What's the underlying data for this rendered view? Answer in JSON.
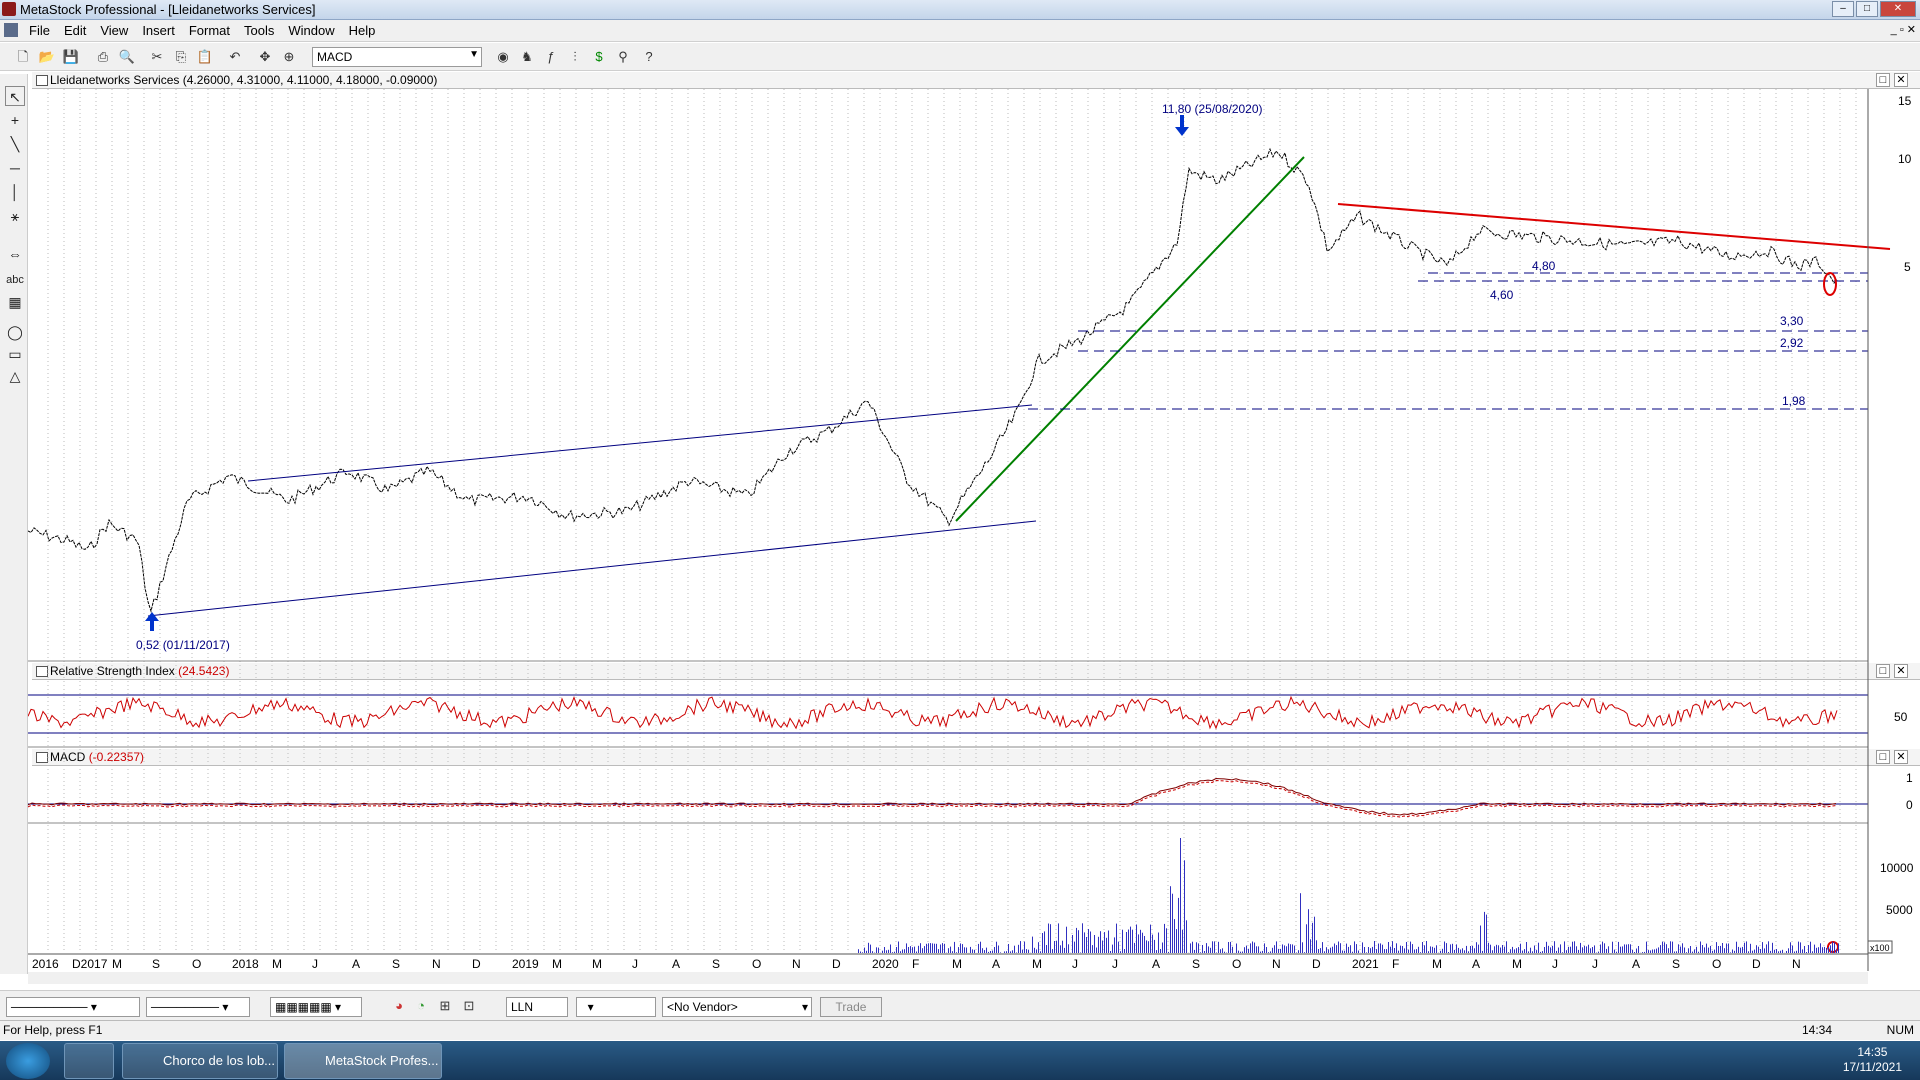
{
  "window": {
    "title": "MetaStock Professional - [Lleidanetworks Services]"
  },
  "menu": [
    "File",
    "Edit",
    "View",
    "Insert",
    "Format",
    "Tools",
    "Window",
    "Help"
  ],
  "toolbar": {
    "indicator": "MACD"
  },
  "price_pane": {
    "header": "Lleidanetworks Services (4.26000, 4.31000, 4.11000, 4.18000, -0.09000)",
    "annotations": {
      "high": "11,80 (25/08/2020)",
      "low": "0,52 (01/11/2017)",
      "l480": "4,80",
      "l460": "4,60",
      "l330": "3,30",
      "l292": "2,92",
      "l198": "1,98"
    },
    "yticks": [
      "15",
      "10",
      "5"
    ]
  },
  "rsi_pane": {
    "name": "Relative Strength Index",
    "value": "(24.5423)",
    "ytick": "50"
  },
  "macd_pane": {
    "name": "MACD",
    "value": "(-0.22357)",
    "yticks": [
      "1",
      "0"
    ]
  },
  "volume_pane": {
    "yticks": [
      "10000",
      "5000"
    ],
    "unit": "x100"
  },
  "xaxis": [
    "2016",
    "D2017",
    "M",
    "S",
    "O",
    "2018",
    "M",
    "J",
    "A",
    "S",
    "N",
    "D",
    "2019",
    "M",
    "M",
    "J",
    "A",
    "S",
    "O",
    "N",
    "D",
    "2020",
    "F",
    "M",
    "A",
    "M",
    "J",
    "J",
    "A",
    "S",
    "O",
    "N",
    "D",
    "2021",
    "F",
    "M",
    "A",
    "M",
    "J",
    "J",
    "A",
    "S",
    "O",
    "D",
    "N"
  ],
  "bottombar": {
    "symbol": "LLN",
    "vendor": "<No Vendor>",
    "trade": "Trade"
  },
  "status": {
    "help": "For Help, press F1",
    "time": "14:34",
    "num": "NUM"
  },
  "taskbar": {
    "chrome": "Chorco de los lob...",
    "metastock": "MetaStock Profes...",
    "clock_time": "14:35",
    "clock_date": "17/11/2021"
  },
  "colors": {
    "price": "#000000",
    "rsi": "#cc0000",
    "bands": "#000080",
    "trend_green": "#008000",
    "trend_red": "#dd0000",
    "support": "#00007f",
    "volume": "#3030c0"
  }
}
